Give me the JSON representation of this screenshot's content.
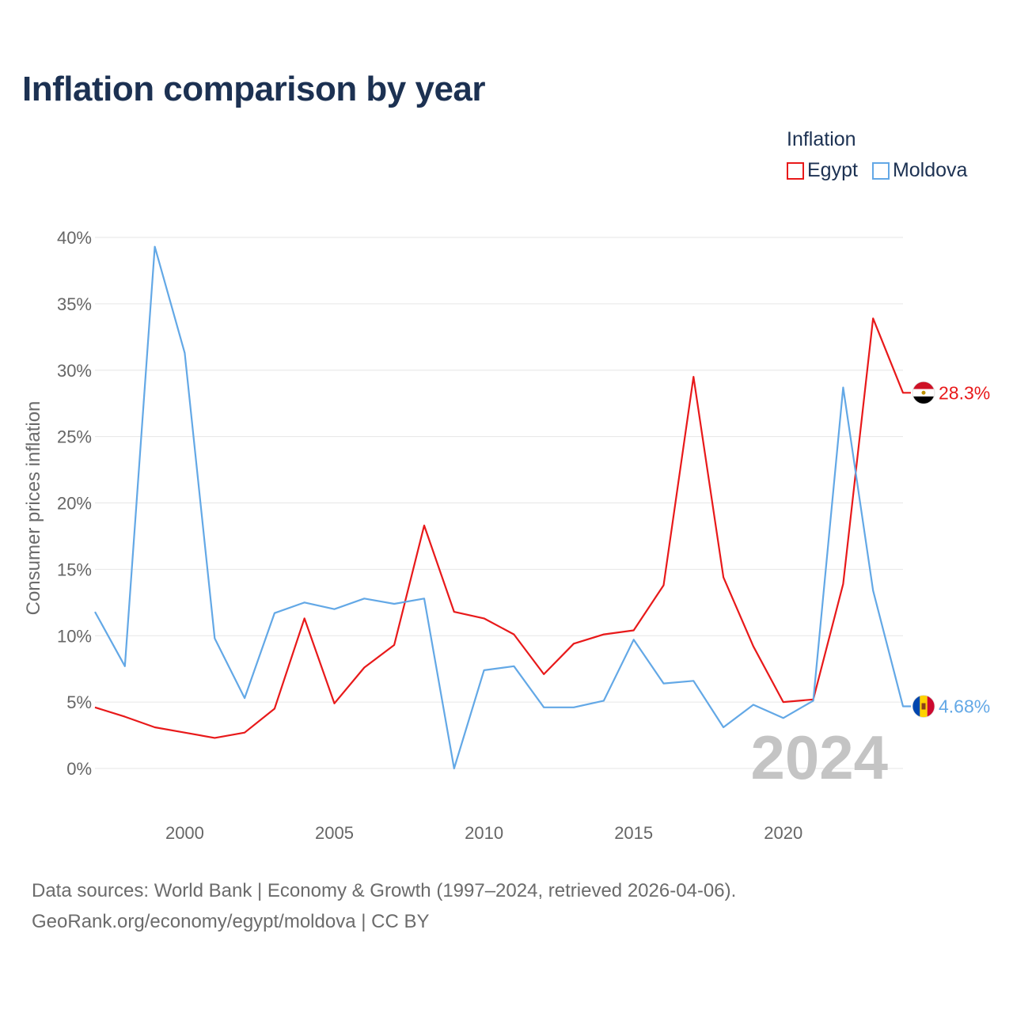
{
  "title": "Inflation comparison by year",
  "legend": {
    "title": "Inflation",
    "items": [
      {
        "label": "Egypt",
        "color": "#e8191a"
      },
      {
        "label": "Moldova",
        "color": "#63a8e6"
      }
    ]
  },
  "year_badge": "2024",
  "footer": {
    "line1": "Data sources: World Bank | Economy & Growth (1997–2024, retrieved 2026-04-06).",
    "line2": "GeoRank.org/economy/egypt/moldova | CC BY"
  },
  "chart_data": {
    "type": "line",
    "title": "Inflation comparison by year",
    "ylabel": "Consumer prices inflation",
    "xlabel": "",
    "xlim": [
      1997,
      2024
    ],
    "ylim": [
      0,
      40
    ],
    "yticks": [
      0,
      5,
      10,
      15,
      20,
      25,
      30,
      35,
      40
    ],
    "ytick_labels": [
      "0%",
      "5%",
      "10%",
      "15%",
      "20%",
      "25%",
      "30%",
      "35%",
      "40%"
    ],
    "xticks": [
      2000,
      2005,
      2010,
      2015,
      2020
    ],
    "xtick_labels": [
      "2000",
      "2005",
      "2010",
      "2015",
      "2020"
    ],
    "grid": true,
    "x": [
      1997,
      1998,
      1999,
      2000,
      2001,
      2002,
      2003,
      2004,
      2005,
      2006,
      2007,
      2008,
      2009,
      2010,
      2011,
      2012,
      2013,
      2014,
      2015,
      2016,
      2017,
      2018,
      2019,
      2020,
      2021,
      2022,
      2023,
      2024
    ],
    "series": [
      {
        "name": "Egypt",
        "color": "#e8191a",
        "end_label": "28.3%",
        "values": [
          4.6,
          3.9,
          3.1,
          2.7,
          2.3,
          2.7,
          4.5,
          11.3,
          4.9,
          7.6,
          9.3,
          18.3,
          11.8,
          11.3,
          10.1,
          7.1,
          9.4,
          10.1,
          10.4,
          13.8,
          29.5,
          14.4,
          9.2,
          5.0,
          5.2,
          13.9,
          33.9,
          28.3
        ]
      },
      {
        "name": "Moldova",
        "color": "#63a8e6",
        "end_label": "4.68%",
        "values": [
          11.8,
          7.7,
          39.3,
          31.3,
          9.8,
          5.3,
          11.7,
          12.5,
          12.0,
          12.8,
          12.4,
          12.8,
          0.0,
          7.4,
          7.7,
          4.6,
          4.6,
          5.1,
          9.7,
          6.4,
          6.6,
          3.1,
          4.8,
          3.8,
          5.1,
          28.7,
          13.4,
          4.68
        ]
      }
    ]
  }
}
